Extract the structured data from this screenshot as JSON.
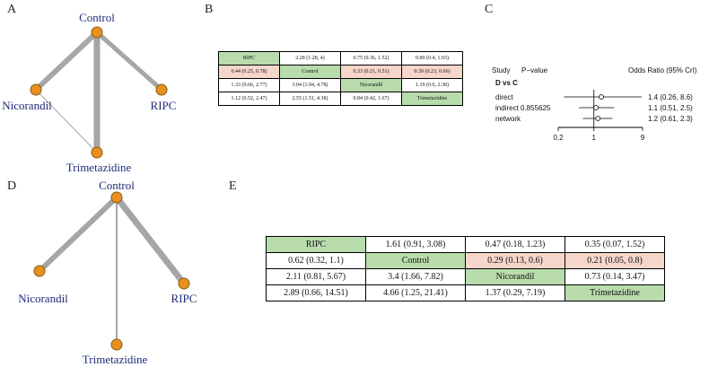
{
  "panels": {
    "a": "A",
    "b": "B",
    "c": "C",
    "d": "D",
    "e": "E"
  },
  "network_a": {
    "nodes": {
      "control": "Control",
      "nicorandil": "Nicorandil",
      "ripc": "RIPC",
      "trimetazidine": "Trimetazidine"
    }
  },
  "network_d": {
    "nodes": {
      "control": "Control",
      "nicorandil": "Nicorandil",
      "ripc": "RIPC",
      "trimetazidine": "Trimetazidine"
    }
  },
  "table_b": {
    "rows": [
      [
        "RIPC",
        "2.28 (1.28, 4)",
        "0.75 (0.36, 1.52)",
        "0.89 (0.4, 1.93)"
      ],
      [
        "0.44 (0.25, 0.78)",
        "Control",
        "0.33 (0.21, 0.51)",
        "0.39 (0.23, 0.66)"
      ],
      [
        "1.33 (0.66, 2.77)",
        "3.04 (1.94, 4.78)",
        "Nicorandil",
        "1.19 (0.6, 2.38)"
      ],
      [
        "1.12 (0.52, 2.47)",
        "2.55 (1.51, 4.38)",
        "0.84 (0.42, 1.67)",
        "Trimetazidine"
      ]
    ]
  },
  "table_e": {
    "rows": [
      [
        "RIPC",
        "1.61 (0.91, 3.08)",
        "0.47 (0.18, 1.23)",
        "0.35 (0.07, 1.52)"
      ],
      [
        "0.62 (0.32, 1.1)",
        "Control",
        "0.29 (0.13, 0.6)",
        "0.21 (0.05, 0.8)"
      ],
      [
        "2.11 (0.81, 5.67)",
        "3.4 (1.66, 7.82)",
        "Nicorandil",
        "0.73 (0.14, 3.47)"
      ],
      [
        "2.89 (0.66, 14.51)",
        "4.66 (1.25, 21.41)",
        "1.37 (0.29, 7.19)",
        "Trimetazidine"
      ]
    ]
  },
  "forest": {
    "header_study": "Study",
    "header_p": "P−value",
    "header_or": "Odds Ratio (95% CrI)",
    "comparison": "D vs C",
    "axis_ticks": [
      "0.2",
      "1",
      "9"
    ],
    "rows": [
      {
        "label": "direct",
        "p": "",
        "ci_text": "1.4 (0.26, 8.6)",
        "est": 1.4,
        "lo": 0.26,
        "hi": 8.6
      },
      {
        "label": "indirect",
        "p": "0.855625",
        "ci_text": "1.1 (0.51, 2.5)",
        "est": 1.1,
        "lo": 0.51,
        "hi": 2.5
      },
      {
        "label": "network",
        "p": "",
        "ci_text": "1.2 (0.61, 2.3)",
        "est": 1.2,
        "lo": 0.61,
        "hi": 2.3
      }
    ]
  }
}
